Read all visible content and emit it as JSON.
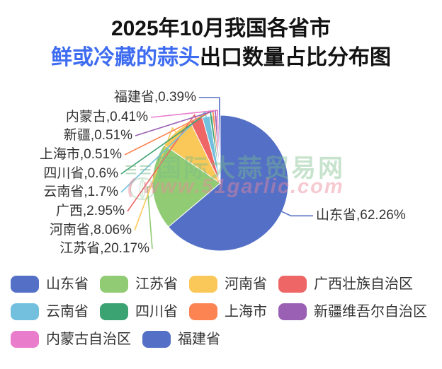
{
  "title": {
    "line1": "2025年10月我国各省市",
    "line2_highlight": "鲜或冷藏的蒜头",
    "line2_rest": "出口数量占比分布图",
    "highlight_color": "#3e6cf0",
    "text_color": "#121212"
  },
  "watermark": {
    "logo": "≡≡",
    "line1": "国际大蒜贸易网",
    "line2": "( www.51garlic.com",
    "line1_color": "#7abc88",
    "line2_color": "#ec8899"
  },
  "chart_data": {
    "type": "pie",
    "title": "2025年10月我国各省市鲜或冷藏的蒜头出口数量占比分布图",
    "unit": "%",
    "label_position": "outside",
    "label_format": "{name},{value}%",
    "legend_position": "bottom",
    "series": [
      {
        "name": "山东省",
        "legend_name": "山东省",
        "value": 62.26,
        "color": "#5470C6"
      },
      {
        "name": "江苏省",
        "legend_name": "江苏省",
        "value": 20.17,
        "color": "#91CC75"
      },
      {
        "name": "河南省",
        "legend_name": "河南省",
        "value": 8.06,
        "color": "#FAC858"
      },
      {
        "name": "广西",
        "legend_name": "广西壮族自治区",
        "value": 2.95,
        "color": "#EE6666"
      },
      {
        "name": "云南省",
        "legend_name": "云南省",
        "value": 1.7,
        "color": "#73C0DE"
      },
      {
        "name": "四川省",
        "legend_name": "四川省",
        "value": 0.6,
        "color": "#3BA272"
      },
      {
        "name": "上海市",
        "legend_name": "上海市",
        "value": 0.51,
        "color": "#FC8452"
      },
      {
        "name": "新疆",
        "legend_name": "新疆维吾尔自治区",
        "value": 0.51,
        "color": "#9A60B4"
      },
      {
        "name": "内蒙古",
        "legend_name": "内蒙古自治区",
        "value": 0.41,
        "color": "#EA7CCC"
      },
      {
        "name": "福建省",
        "legend_name": "福建省",
        "value": 0.39,
        "color": "#5470C6"
      }
    ]
  }
}
